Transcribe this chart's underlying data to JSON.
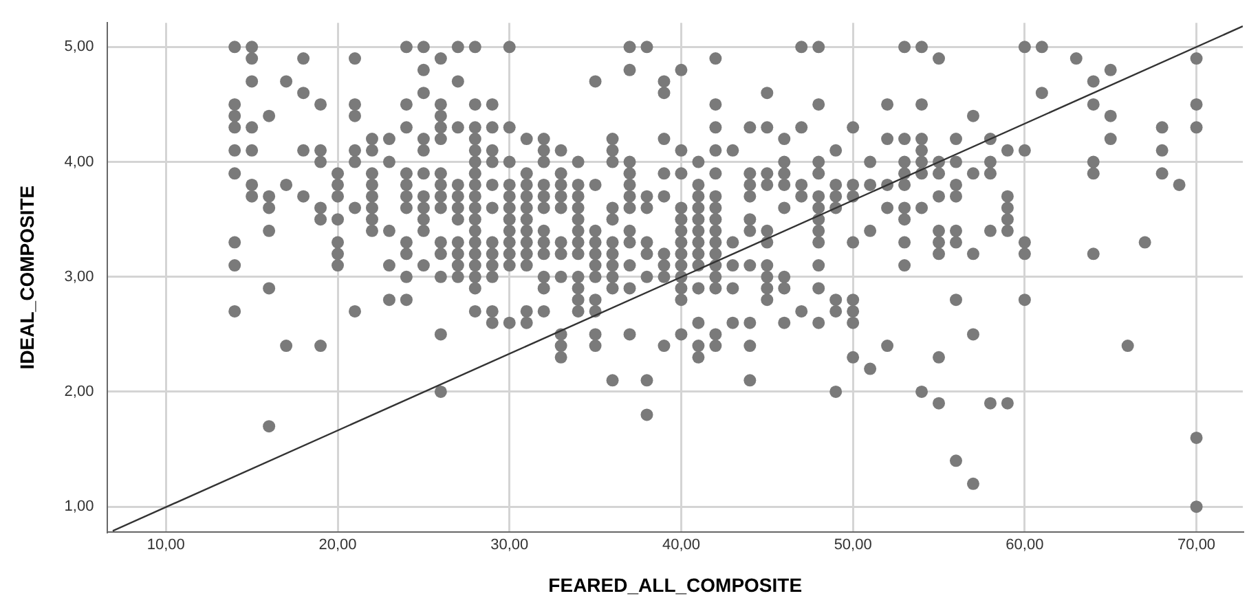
{
  "chart_data": {
    "type": "scatter",
    "xlabel": "FEARED_ALL_COMPOSITE",
    "ylabel": "IDEAL_COMPOSITE",
    "xlim": [
      6.6,
      72.7
    ],
    "ylim": [
      0.78,
      5.21
    ],
    "xticks": [
      {
        "value": 10,
        "label": "10,00"
      },
      {
        "value": 20,
        "label": "20,00"
      },
      {
        "value": 30,
        "label": "30,00"
      },
      {
        "value": 40,
        "label": "40,00"
      },
      {
        "value": 50,
        "label": "50,00"
      },
      {
        "value": 60,
        "label": "60,00"
      },
      {
        "value": 70,
        "label": "70,00"
      }
    ],
    "yticks": [
      {
        "value": 1,
        "label": "1,00"
      },
      {
        "value": 2,
        "label": "2,00"
      },
      {
        "value": 3,
        "label": "3,00"
      },
      {
        "value": 4,
        "label": "4,00"
      },
      {
        "value": 5,
        "label": "5,00"
      }
    ],
    "grid": true,
    "marker": "circle",
    "series": [
      {
        "color": "#7a7a7a",
        "x": [
          14,
          14,
          14,
          14,
          14,
          14,
          14,
          14,
          14,
          15,
          15,
          15,
          15,
          15,
          15,
          15,
          16,
          16,
          16,
          16,
          16,
          16,
          17,
          17,
          17,
          18,
          18,
          18,
          18,
          19,
          19,
          19,
          19,
          19,
          19,
          20,
          20,
          20,
          20,
          20,
          20,
          20,
          21,
          21,
          21,
          21,
          21,
          21,
          21,
          22,
          22,
          22,
          22,
          22,
          22,
          22,
          22,
          23,
          23,
          23,
          23,
          23,
          24,
          24,
          24,
          24,
          24,
          24,
          24,
          24,
          24,
          24,
          24,
          25,
          25,
          25,
          25,
          25,
          25,
          25,
          25,
          25,
          25,
          25,
          26,
          26,
          26,
          26,
          26,
          26,
          26,
          26,
          26,
          26,
          26,
          26,
          26,
          26,
          27,
          27,
          27,
          27,
          27,
          27,
          27,
          27,
          27,
          27,
          27,
          28,
          28,
          28,
          28,
          28,
          28,
          28,
          28,
          28,
          28,
          28,
          28,
          28,
          28,
          28,
          28,
          28,
          28,
          29,
          29,
          29,
          29,
          29,
          29,
          29,
          29,
          29,
          29,
          29,
          29,
          30,
          30,
          30,
          30,
          30,
          30,
          30,
          30,
          30,
          30,
          30,
          30,
          31,
          31,
          31,
          31,
          31,
          31,
          31,
          31,
          31,
          31,
          31,
          31,
          32,
          32,
          32,
          32,
          32,
          32,
          32,
          32,
          32,
          32,
          32,
          32,
          33,
          33,
          33,
          33,
          33,
          33,
          33,
          33,
          33,
          33,
          33,
          34,
          34,
          34,
          34,
          34,
          34,
          34,
          34,
          34,
          34,
          34,
          34,
          35,
          35,
          35,
          35,
          35,
          35,
          35,
          35,
          35,
          35,
          35,
          36,
          36,
          36,
          36,
          36,
          36,
          36,
          36,
          36,
          36,
          36,
          37,
          37,
          37,
          37,
          37,
          37,
          37,
          37,
          37,
          37,
          37,
          37,
          38,
          38,
          38,
          38,
          38,
          38,
          38,
          38,
          39,
          39,
          39,
          39,
          39,
          39,
          39,
          39,
          39,
          40,
          40,
          40,
          40,
          40,
          40,
          40,
          40,
          40,
          40,
          40,
          40,
          40,
          41,
          41,
          41,
          41,
          41,
          41,
          41,
          41,
          41,
          41,
          41,
          41,
          41,
          42,
          42,
          42,
          42,
          42,
          42,
          42,
          42,
          42,
          42,
          42,
          42,
          42,
          42,
          42,
          42,
          43,
          43,
          43,
          43,
          43,
          44,
          44,
          44,
          44,
          44,
          44,
          44,
          44,
          44,
          44,
          45,
          45,
          45,
          45,
          45,
          45,
          45,
          45,
          45,
          45,
          46,
          46,
          46,
          46,
          46,
          46,
          46,
          46,
          47,
          47,
          47,
          47,
          47,
          48,
          48,
          48,
          48,
          48,
          48,
          48,
          48,
          48,
          48,
          48,
          48,
          49,
          49,
          49,
          49,
          49,
          49,
          49,
          50,
          50,
          50,
          50,
          50,
          50,
          50,
          50,
          51,
          51,
          51,
          51,
          52,
          52,
          52,
          52,
          52,
          53,
          53,
          53,
          53,
          53,
          53,
          53,
          53,
          53,
          54,
          54,
          54,
          54,
          54,
          54,
          54,
          54,
          55,
          55,
          55,
          55,
          55,
          55,
          55,
          55,
          55,
          56,
          56,
          56,
          56,
          56,
          56,
          56,
          56,
          57,
          57,
          57,
          57,
          57,
          58,
          58,
          58,
          58,
          58,
          59,
          59,
          59,
          59,
          59,
          59,
          60,
          60,
          60,
          60,
          60,
          61,
          61,
          63,
          64,
          64,
          64,
          64,
          64,
          65,
          65,
          65,
          66,
          67,
          68,
          68,
          68,
          69,
          70,
          70,
          70,
          70,
          70
        ],
        "values": [
          5.0,
          4.5,
          4.4,
          4.3,
          4.1,
          3.9,
          3.3,
          3.1,
          2.7,
          5.0,
          4.9,
          4.7,
          4.3,
          4.1,
          3.8,
          3.7,
          4.4,
          3.7,
          3.6,
          3.4,
          2.9,
          1.7,
          4.7,
          3.8,
          2.4,
          4.9,
          4.6,
          4.1,
          3.7,
          4.5,
          4.1,
          4.0,
          3.6,
          3.5,
          2.4,
          3.9,
          3.8,
          3.7,
          3.5,
          3.3,
          3.2,
          3.1,
          4.9,
          4.5,
          4.4,
          4.1,
          4.0,
          3.6,
          2.7,
          4.2,
          4.1,
          3.9,
          3.8,
          3.7,
          3.6,
          3.5,
          3.4,
          4.2,
          4.0,
          3.4,
          3.1,
          2.8,
          5.0,
          4.5,
          4.3,
          3.9,
          3.8,
          3.7,
          3.6,
          3.3,
          3.2,
          3.0,
          2.8,
          5.0,
          4.8,
          4.6,
          4.2,
          4.1,
          3.9,
          3.7,
          3.6,
          3.5,
          3.4,
          3.1,
          4.9,
          4.5,
          4.4,
          4.3,
          4.2,
          3.9,
          3.8,
          3.7,
          3.6,
          3.3,
          3.2,
          3.0,
          2.5,
          2.0,
          5.0,
          4.7,
          4.3,
          3.8,
          3.7,
          3.6,
          3.5,
          3.3,
          3.2,
          3.1,
          3.0,
          5.0,
          4.5,
          4.3,
          4.2,
          4.1,
          4.0,
          3.9,
          3.8,
          3.7,
          3.6,
          3.5,
          3.4,
          3.3,
          3.2,
          3.1,
          3.0,
          2.9,
          2.7,
          4.5,
          4.3,
          4.1,
          4.0,
          3.8,
          3.6,
          3.3,
          3.2,
          3.1,
          3.0,
          2.7,
          2.6,
          5.0,
          4.3,
          4.0,
          3.8,
          3.7,
          3.6,
          3.5,
          3.4,
          3.3,
          3.2,
          3.1,
          2.6,
          4.2,
          3.9,
          3.8,
          3.7,
          3.6,
          3.5,
          3.4,
          3.3,
          3.2,
          3.1,
          2.7,
          2.6,
          4.2,
          4.1,
          4.0,
          3.8,
          3.7,
          3.6,
          3.4,
          3.3,
          3.2,
          3.0,
          2.9,
          2.7,
          4.1,
          3.9,
          3.8,
          3.7,
          3.6,
          3.3,
          3.2,
          3.0,
          2.5,
          2.4,
          2.3,
          4.0,
          3.8,
          3.7,
          3.6,
          3.5,
          3.4,
          3.3,
          3.2,
          3.0,
          2.9,
          2.8,
          2.7,
          4.7,
          3.8,
          3.4,
          3.3,
          3.2,
          3.1,
          3.0,
          2.8,
          2.7,
          2.5,
          2.4,
          4.2,
          4.1,
          4.0,
          3.6,
          3.5,
          3.3,
          3.2,
          3.1,
          3.0,
          2.9,
          2.1,
          5.0,
          4.8,
          4.0,
          3.9,
          3.8,
          3.7,
          3.6,
          3.4,
          3.3,
          3.1,
          2.9,
          2.5,
          5.0,
          3.7,
          3.6,
          3.3,
          3.2,
          3.0,
          2.1,
          1.8,
          4.7,
          4.6,
          4.2,
          3.9,
          3.7,
          3.2,
          3.1,
          3.0,
          2.4,
          4.8,
          4.1,
          3.9,
          3.6,
          3.5,
          3.4,
          3.3,
          3.2,
          3.1,
          3.0,
          2.9,
          2.8,
          2.5,
          4.0,
          3.8,
          3.7,
          3.6,
          3.5,
          3.4,
          3.3,
          3.2,
          3.1,
          2.9,
          2.6,
          2.4,
          2.3,
          4.9,
          4.5,
          4.3,
          4.1,
          3.9,
          3.7,
          3.6,
          3.5,
          3.4,
          3.3,
          3.2,
          3.1,
          3.0,
          2.9,
          2.5,
          2.4,
          4.1,
          3.3,
          3.1,
          2.9,
          2.6,
          4.3,
          3.9,
          3.8,
          3.7,
          3.5,
          3.4,
          3.1,
          2.6,
          2.4,
          2.1,
          4.6,
          4.3,
          3.9,
          3.8,
          3.4,
          3.3,
          3.1,
          3.0,
          2.9,
          2.8,
          4.2,
          4.0,
          3.9,
          3.8,
          3.6,
          3.0,
          2.9,
          2.6,
          5.0,
          4.3,
          3.8,
          3.7,
          2.7,
          5.0,
          4.5,
          4.0,
          3.9,
          3.7,
          3.6,
          3.5,
          3.4,
          3.3,
          3.1,
          2.9,
          2.6,
          4.1,
          3.8,
          3.7,
          3.6,
          2.8,
          2.7,
          2.0,
          4.3,
          3.8,
          3.7,
          3.3,
          2.8,
          2.7,
          2.6,
          2.3,
          4.0,
          3.8,
          3.4,
          2.2,
          4.5,
          4.2,
          3.8,
          3.6,
          2.4,
          5.0,
          4.2,
          4.0,
          3.9,
          3.8,
          3.6,
          3.5,
          3.3,
          3.1,
          5.0,
          4.5,
          4.2,
          4.1,
          4.0,
          3.9,
          3.6,
          2.0,
          4.9,
          4.0,
          3.9,
          3.7,
          3.4,
          3.3,
          3.2,
          2.3,
          1.9,
          4.2,
          4.0,
          3.8,
          3.7,
          3.4,
          3.3,
          2.8,
          1.4,
          4.4,
          3.9,
          3.2,
          2.5,
          1.2,
          4.2,
          4.0,
          3.9,
          3.4,
          1.9,
          4.1,
          3.7,
          3.6,
          3.5,
          3.4,
          1.9,
          5.0,
          4.1,
          3.3,
          3.2,
          2.8,
          5.0,
          4.6,
          4.9,
          4.7,
          4.5,
          4.0,
          3.9,
          3.2,
          4.8,
          4.4,
          4.2,
          2.4,
          3.3,
          4.3,
          4.1,
          3.9,
          3.8,
          4.9,
          4.5,
          4.3,
          1.6,
          1.0
        ]
      },
      {
        "type": "line",
        "marker": "none",
        "color": "#333333",
        "x": [
          6.9,
          72.7
        ],
        "values": [
          0.79,
          5.18
        ]
      }
    ]
  }
}
